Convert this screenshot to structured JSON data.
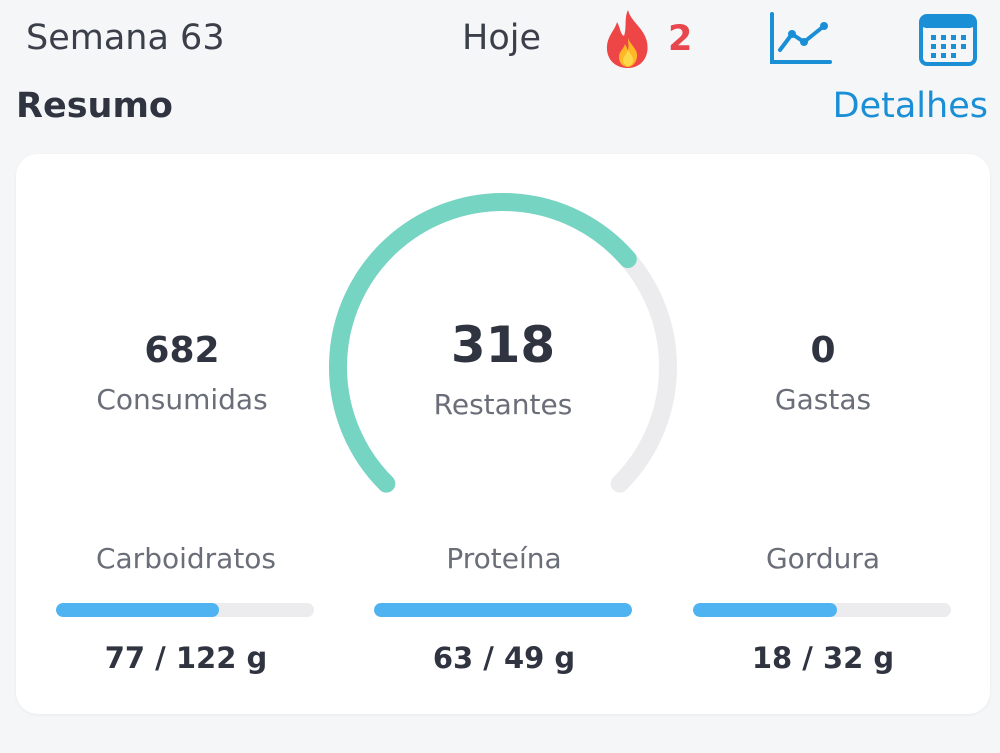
{
  "header": {
    "week_label": "Semana 63",
    "today_label": "Hoje",
    "streak_count": "2",
    "icons": [
      "flame-icon",
      "line-chart-icon",
      "calendar-icon"
    ],
    "accent_color": "#1a8fd6",
    "streak_color": "#e8474d"
  },
  "summary": {
    "title": "Resumo",
    "details_label": "Detalhes"
  },
  "calories": {
    "consumed_value": "682",
    "consumed_label": "Consumidas",
    "remaining_value": "318",
    "remaining_label": "Restantes",
    "burned_value": "0",
    "burned_label": "Gastas",
    "gauge_progress": 0.682,
    "gauge_color": "#76d4c3"
  },
  "macros": [
    {
      "name": "Carboidratos",
      "value": "77 / 122 g",
      "progress": 0.63
    },
    {
      "name": "Proteína",
      "value": "63 / 49 g",
      "progress": 1.0
    },
    {
      "name": "Gordura",
      "value": "18 / 32 g",
      "progress": 0.56
    }
  ],
  "macro_bar_color": "#4fb3f2"
}
